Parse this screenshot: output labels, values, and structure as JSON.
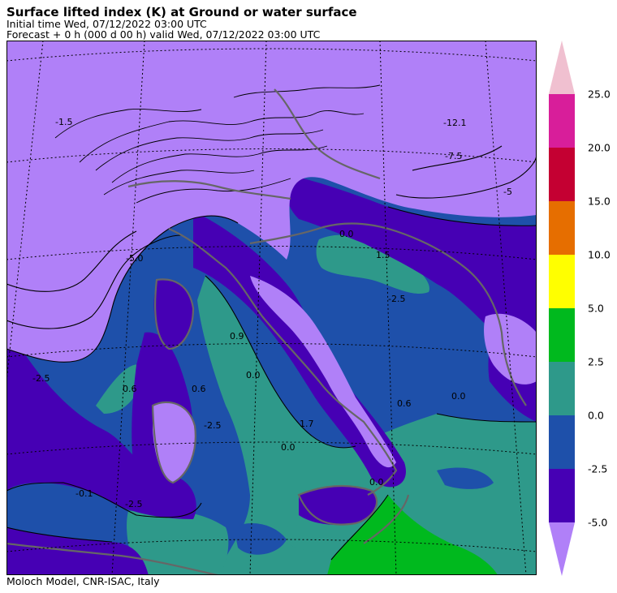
{
  "header": {
    "title": "Surface lifted index (K) at Ground or water surface",
    "initial_time": "Initial time  Wed, 07/12/2022  03:00 UTC",
    "forecast": "Forecast  +   0 h  (000 d 00 h)  valid Wed, 07/12/2022 03:00 UTC"
  },
  "footer": "Moloch Model, CNR-ISAC, Italy",
  "colorbar": {
    "ticks": [
      "25.0",
      "20.0",
      "15.0",
      "10.0",
      "5.0",
      "2.5",
      "0.0",
      "-2.5",
      "-5.0"
    ],
    "colors": {
      "over": "#f0c0d0",
      "20_25": "#d81e9a",
      "15_20": "#c40032",
      "10_15": "#e66e00",
      "5_10": "#ffff00",
      "2.5_5": "#00b91e",
      "0_2.5": "#2e998a",
      "-2.5_0": "#1e50aa",
      "-5_-2.5": "#4600b4",
      "under": "#b080f8"
    }
  },
  "map": {
    "contour_labels": [
      "-12.1",
      "-7.5",
      "-5.0",
      "-5",
      "-1.5",
      "-2.5",
      "-2.5",
      "-2.5",
      "-2.5",
      "0.0",
      "0.0",
      "0.0",
      "0.0",
      "0.0",
      "-0.1",
      "0.9",
      "0.6",
      "0.6",
      "0.6",
      "1.5",
      "1.7"
    ]
  }
}
